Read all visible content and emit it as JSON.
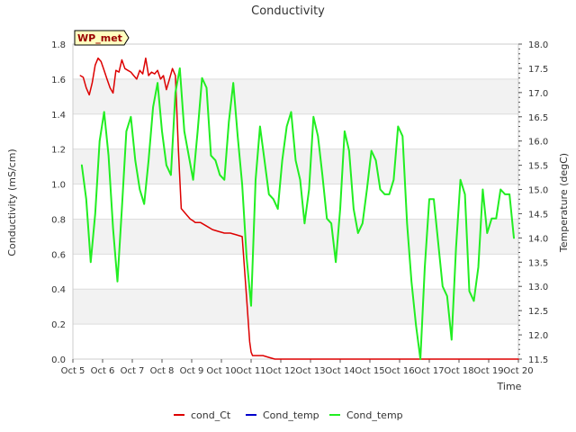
{
  "chart_data": {
    "type": "line",
    "title": "Conductivity",
    "xlabel": "Time",
    "ylabel": "Conductivity (mS/cm)",
    "y2label": "Temperature (degC)",
    "annotation": "WP_met",
    "x_unit": "days since Oct 5 00:00",
    "xlim": [
      0,
      15
    ],
    "ylim": [
      0,
      1.8
    ],
    "y2lim": [
      11.5,
      18.0
    ],
    "categories": [
      "Oct 5",
      "Oct 6",
      "Oct 7",
      "Oct 8",
      "Oct 9",
      "Oct 10",
      "Oct 11",
      "Oct 12",
      "Oct 13",
      "Oct 14",
      "Oct 15",
      "Oct 16",
      "Oct 17",
      "Oct 18",
      "Oct 19",
      "Oct 20"
    ],
    "yticks": [
      "0.0",
      "0.2",
      "0.4",
      "0.6",
      "0.8",
      "1.0",
      "1.2",
      "1.4",
      "1.6",
      "1.8"
    ],
    "y2ticks": [
      "11.5",
      "12.0",
      "12.5",
      "13.0",
      "13.5",
      "14.0",
      "14.5",
      "15.0",
      "15.5",
      "16.0",
      "16.5",
      "17.0",
      "17.5",
      "18.0"
    ],
    "legend_position": "bottom",
    "grid": "alternating horizontal bands",
    "series": [
      {
        "name": "cond_Ct",
        "color": "#dd0000",
        "axis": "left",
        "x": [
          0.25,
          0.35,
          0.45,
          0.55,
          0.65,
          0.75,
          0.85,
          0.95,
          1.05,
          1.15,
          1.25,
          1.35,
          1.45,
          1.55,
          1.65,
          1.75,
          1.85,
          1.95,
          2.05,
          2.15,
          2.25,
          2.35,
          2.45,
          2.55,
          2.65,
          2.75,
          2.85,
          2.95,
          3.05,
          3.15,
          3.25,
          3.35,
          3.45,
          3.55,
          3.65,
          3.75,
          3.85,
          3.95,
          4.05,
          4.12,
          4.18,
          4.3,
          4.5,
          4.7,
          4.9,
          5.1,
          5.3,
          5.5,
          5.7,
          5.85,
          5.95,
          6.0,
          6.05,
          6.1,
          6.2,
          6.4,
          6.6,
          6.8,
          7.0,
          8.0,
          9.0,
          10.0,
          11.0,
          12.0,
          13.0,
          14.0,
          14.5,
          15.0
        ],
        "values": [
          1.62,
          1.61,
          1.55,
          1.51,
          1.58,
          1.68,
          1.72,
          1.7,
          1.65,
          1.6,
          1.55,
          1.52,
          1.65,
          1.64,
          1.71,
          1.66,
          1.65,
          1.64,
          1.62,
          1.6,
          1.65,
          1.63,
          1.72,
          1.62,
          1.64,
          1.63,
          1.65,
          1.6,
          1.62,
          1.54,
          1.6,
          1.66,
          1.62,
          1.2,
          0.86,
          0.84,
          0.82,
          0.8,
          0.79,
          0.78,
          0.78,
          0.78,
          0.76,
          0.74,
          0.73,
          0.72,
          0.72,
          0.71,
          0.7,
          0.35,
          0.1,
          0.04,
          0.02,
          0.02,
          0.02,
          0.02,
          0.01,
          0.0,
          0.0,
          0.0,
          0.0,
          0.0,
          0.0,
          0.0,
          0.0,
          0.0,
          0.0,
          0.0
        ]
      },
      {
        "name": "Cond_temp",
        "color": "#0000cc",
        "axis": "right",
        "x": [],
        "values": []
      },
      {
        "name": "Cond_temp",
        "color": "#22ee22",
        "axis": "right",
        "x": [
          0.3,
          0.45,
          0.6,
          0.75,
          0.9,
          1.05,
          1.2,
          1.35,
          1.5,
          1.65,
          1.8,
          1.95,
          2.1,
          2.25,
          2.4,
          2.55,
          2.7,
          2.85,
          3.0,
          3.15,
          3.3,
          3.45,
          3.6,
          3.75,
          3.9,
          4.05,
          4.2,
          4.35,
          4.5,
          4.65,
          4.8,
          4.95,
          5.1,
          5.25,
          5.4,
          5.55,
          5.7,
          5.85,
          6.0,
          6.15,
          6.3,
          6.45,
          6.6,
          6.75,
          6.9,
          7.05,
          7.2,
          7.35,
          7.5,
          7.65,
          7.8,
          7.95,
          8.1,
          8.25,
          8.4,
          8.55,
          8.7,
          8.85,
          9.0,
          9.15,
          9.3,
          9.45,
          9.6,
          9.75,
          9.9,
          10.05,
          10.2,
          10.35,
          10.5,
          10.65,
          10.8,
          10.95,
          11.1,
          11.25,
          11.4,
          11.55,
          11.7,
          11.85,
          12.0,
          12.15,
          12.3,
          12.45,
          12.6,
          12.75,
          12.9,
          13.05,
          13.2,
          13.35,
          13.5,
          13.65,
          13.8,
          13.95,
          14.1,
          14.25,
          14.4,
          14.55,
          14.7,
          14.85
        ],
        "values": [
          15.5,
          14.8,
          13.5,
          14.5,
          16.0,
          16.6,
          15.7,
          14.2,
          13.1,
          14.6,
          16.2,
          16.5,
          15.6,
          15.0,
          14.7,
          15.6,
          16.7,
          17.2,
          16.2,
          15.5,
          15.3,
          17.0,
          17.5,
          16.2,
          15.7,
          15.2,
          16.2,
          17.3,
          17.1,
          15.7,
          15.6,
          15.3,
          15.2,
          16.4,
          17.2,
          16.1,
          15.1,
          13.6,
          12.6,
          15.2,
          16.3,
          15.6,
          14.9,
          14.8,
          14.6,
          15.6,
          16.3,
          16.6,
          15.6,
          15.2,
          14.3,
          15.0,
          16.5,
          16.1,
          15.3,
          14.4,
          14.3,
          13.5,
          14.6,
          16.2,
          15.8,
          14.6,
          14.1,
          14.3,
          15.0,
          15.8,
          15.6,
          15.0,
          14.9,
          14.9,
          15.2,
          16.3,
          16.1,
          14.3,
          13.1,
          12.2,
          11.5,
          13.4,
          14.8,
          14.8,
          13.9,
          13.0,
          12.8,
          11.9,
          13.8,
          15.2,
          14.9,
          12.9,
          12.7,
          13.4,
          15.0,
          14.1,
          14.4,
          14.4,
          15.0,
          14.9,
          14.9,
          14.0
        ]
      }
    ]
  }
}
